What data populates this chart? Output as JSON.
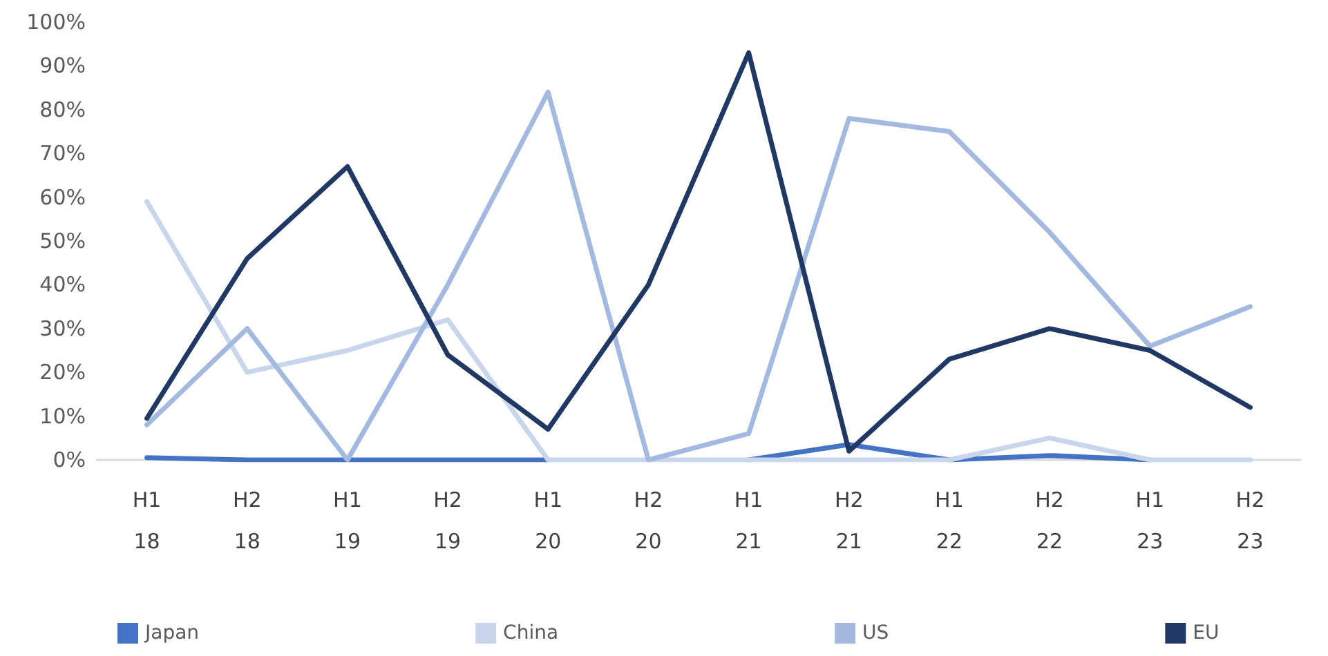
{
  "chart_data": {
    "type": "line",
    "categories": [
      "H1\n18",
      "H2\n18",
      "H1\n19",
      "H2\n19",
      "H1\n20",
      "H2\n20",
      "H1\n21",
      "H2\n21",
      "H1\n22",
      "H2\n22",
      "H1\n23",
      "H2\n23"
    ],
    "series": [
      {
        "name": "Japan",
        "color": "#4472c4",
        "values": [
          0.5,
          0,
          0,
          0,
          0,
          null,
          0,
          3.5,
          0,
          1,
          0,
          null
        ]
      },
      {
        "name": "China",
        "color": "#c9d5ea",
        "values": [
          59,
          20,
          25,
          32,
          0,
          0,
          0,
          0,
          0,
          5,
          0,
          0
        ]
      },
      {
        "name": "US",
        "color": "#a3b9e0",
        "values": [
          8,
          30,
          0,
          40,
          84,
          0,
          6,
          78,
          75,
          52,
          26,
          35
        ]
      },
      {
        "name": "EU",
        "color": "#1f3864",
        "values": [
          9.5,
          46,
          67,
          24,
          7,
          40,
          93,
          2,
          23,
          30,
          25,
          12
        ]
      }
    ],
    "ylim": [
      0,
      100
    ],
    "yticks": [
      {
        "value": 0,
        "label": "0%"
      },
      {
        "value": 10,
        "label": "10%"
      },
      {
        "value": 20,
        "label": "20%"
      },
      {
        "value": 30,
        "label": "30%"
      },
      {
        "value": 40,
        "label": "40%"
      },
      {
        "value": 50,
        "label": "50%"
      },
      {
        "value": 60,
        "label": "60%"
      },
      {
        "value": 70,
        "label": "70%"
      },
      {
        "value": 80,
        "label": "80%"
      },
      {
        "value": 90,
        "label": "90%"
      },
      {
        "value": 100,
        "label": "100%"
      }
    ],
    "grid": false,
    "legend": "bottom",
    "marker": "none",
    "line_style": "solid"
  }
}
